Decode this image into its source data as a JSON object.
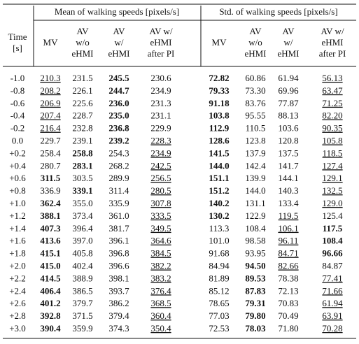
{
  "table": {
    "group_headers": [
      "Mean of walking speeds [pixels/s]",
      "Std. of walking speeds [pixels/s]"
    ],
    "columns": [
      [
        "Time",
        "[s]"
      ],
      [
        "MV"
      ],
      [
        "AV",
        "w/o",
        "eHMI"
      ],
      [
        "AV",
        "w/",
        "eHMI"
      ],
      [
        "AV w/",
        "eHMI",
        "after PI"
      ],
      [
        "MV"
      ],
      [
        "AV",
        "w/o",
        "eHMI"
      ],
      [
        "AV",
        "w/",
        "eHMI"
      ],
      [
        "AV w/",
        "eHMI",
        "after PI"
      ]
    ],
    "rows": [
      {
        "cells": [
          "-1.0",
          "210.3",
          "231.5",
          "245.5",
          "230.6",
          "72.82",
          "60.86",
          "61.94",
          "56.13"
        ],
        "bold": [
          3,
          5
        ],
        "underline": [
          1,
          8
        ]
      },
      {
        "cells": [
          "-0.8",
          "208.2",
          "226.1",
          "244.7",
          "234.9",
          "79.33",
          "73.30",
          "69.96",
          "63.47"
        ],
        "bold": [
          3,
          5
        ],
        "underline": [
          1,
          8
        ]
      },
      {
        "cells": [
          "-0.6",
          "206.9",
          "225.6",
          "236.0",
          "231.3",
          "91.18",
          "83.76",
          "77.87",
          "71.25"
        ],
        "bold": [
          3,
          5
        ],
        "underline": [
          1,
          8
        ]
      },
      {
        "cells": [
          "-0.4",
          "207.4",
          "228.7",
          "235.0",
          "231.1",
          "103.8",
          "95.55",
          "88.13",
          "82.20"
        ],
        "bold": [
          3,
          5
        ],
        "underline": [
          1,
          8
        ]
      },
      {
        "cells": [
          "-0.2",
          "216.4",
          "232.8",
          "236.8",
          "229.9",
          "112.9",
          "110.5",
          "103.6",
          "90.35"
        ],
        "bold": [
          3,
          5
        ],
        "underline": [
          1,
          8
        ]
      },
      {
        "cells": [
          "0.0",
          "229.7",
          "239.1",
          "239.2",
          "228.3",
          "128.6",
          "123.8",
          "120.8",
          "105.8"
        ],
        "bold": [
          3,
          5
        ],
        "underline": [
          4,
          8
        ]
      },
      {
        "cells": [
          "+0.2",
          "258.4",
          "258.8",
          "254.3",
          "234.9",
          "141.5",
          "137.9",
          "137.5",
          "118.5"
        ],
        "bold": [
          2,
          5
        ],
        "underline": [
          4,
          8
        ]
      },
      {
        "cells": [
          "+0.4",
          "280.7",
          "283.1",
          "268.2",
          "242.5",
          "144.0",
          "142.4",
          "141.7",
          "127.4"
        ],
        "bold": [
          2,
          5
        ],
        "underline": [
          4,
          8
        ]
      },
      {
        "cells": [
          "+0.6",
          "311.5",
          "303.5",
          "289.9",
          "256.5",
          "151.1",
          "139.9",
          "144.1",
          "129.1"
        ],
        "bold": [
          1,
          5
        ],
        "underline": [
          4,
          8
        ]
      },
      {
        "cells": [
          "+0.8",
          "336.9",
          "339.1",
          "311.4",
          "280.5",
          "151.2",
          "144.0",
          "140.3",
          "132.5"
        ],
        "bold": [
          2,
          5
        ],
        "underline": [
          4,
          8
        ]
      },
      {
        "cells": [
          "+1.0",
          "362.4",
          "355.0",
          "335.9",
          "307.8",
          "140.2",
          "131.1",
          "133.4",
          "129.0"
        ],
        "bold": [
          1,
          5
        ],
        "underline": [
          4,
          8
        ]
      },
      {
        "cells": [
          "+1.2",
          "388.1",
          "373.4",
          "361.0",
          "333.5",
          "130.2",
          "122.9",
          "119.5",
          "125.4"
        ],
        "bold": [
          1,
          5
        ],
        "underline": [
          4,
          7
        ]
      },
      {
        "cells": [
          "+1.4",
          "407.3",
          "396.4",
          "381.7",
          "349.5",
          "113.3",
          "108.4",
          "106.1",
          "117.5"
        ],
        "bold": [
          1,
          8
        ],
        "underline": [
          4,
          7
        ]
      },
      {
        "cells": [
          "+1.6",
          "413.6",
          "397.0",
          "396.1",
          "364.6",
          "101.0",
          "98.58",
          "96.11",
          "108.4"
        ],
        "bold": [
          1,
          8
        ],
        "underline": [
          4,
          7
        ]
      },
      {
        "cells": [
          "+1.8",
          "415.1",
          "405.8",
          "396.8",
          "384.5",
          "91.68",
          "93.95",
          "84.71",
          "96.66"
        ],
        "bold": [
          1,
          8
        ],
        "underline": [
          4,
          7
        ]
      },
      {
        "cells": [
          "+2.0",
          "415.0",
          "402.4",
          "396.6",
          "382.2",
          "84.94",
          "94.50",
          "82.66",
          "84.87"
        ],
        "bold": [
          1,
          6
        ],
        "underline": [
          4,
          7
        ]
      },
      {
        "cells": [
          "+2.2",
          "414.5",
          "388.9",
          "398.1",
          "383.2",
          "81.89",
          "89.53",
          "78.38",
          "77.41"
        ],
        "bold": [
          1,
          6
        ],
        "underline": [
          4,
          8
        ]
      },
      {
        "cells": [
          "+2.4",
          "406.4",
          "386.5",
          "393.7",
          "376.4",
          "85.12",
          "87.83",
          "72.13",
          "71.66"
        ],
        "bold": [
          1,
          6
        ],
        "underline": [
          4,
          8
        ]
      },
      {
        "cells": [
          "+2.6",
          "401.2",
          "379.7",
          "386.2",
          "368.5",
          "78.65",
          "79.31",
          "70.83",
          "61.94"
        ],
        "bold": [
          1,
          6
        ],
        "underline": [
          4,
          8
        ]
      },
      {
        "cells": [
          "+2.8",
          "392.8",
          "371.5",
          "379.4",
          "360.4",
          "77.03",
          "79.80",
          "70.49",
          "63.91"
        ],
        "bold": [
          1,
          6
        ],
        "underline": [
          4,
          8
        ]
      },
      {
        "cells": [
          "+3.0",
          "390.4",
          "359.9",
          "374.3",
          "350.4",
          "72.53",
          "78.03",
          "71.80",
          "70.28"
        ],
        "bold": [
          1,
          6
        ],
        "underline": [
          4,
          8
        ]
      }
    ]
  }
}
